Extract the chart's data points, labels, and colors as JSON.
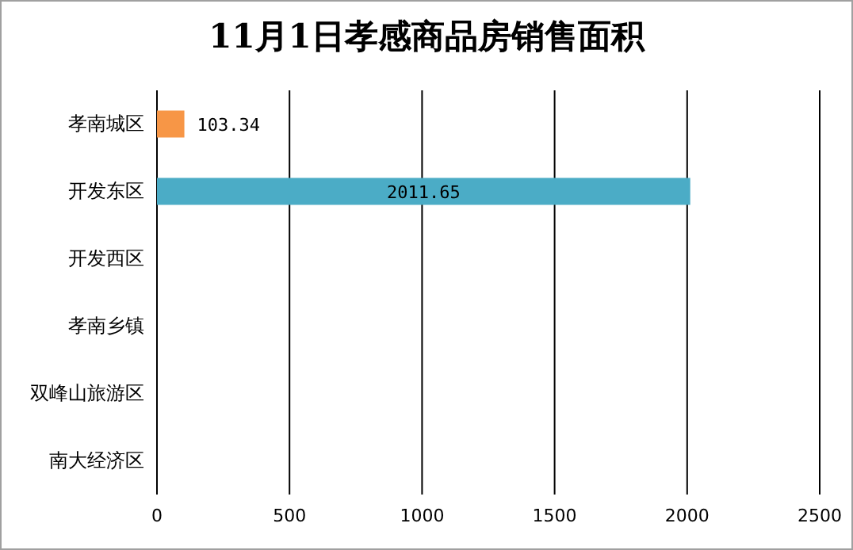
{
  "chart_data": {
    "type": "bar",
    "orientation": "horizontal",
    "title": "11月1日孝感商品房销售面积",
    "categories": [
      "孝南城区",
      "开发东区",
      "开发西区",
      "孝南乡镇",
      "双峰山旅游区",
      "南大经济区"
    ],
    "values": [
      103.34,
      2011.65,
      null,
      null,
      null,
      null
    ],
    "colors": [
      "#f79646",
      "#4bacc6",
      null,
      null,
      null,
      null
    ],
    "xlim": [
      0,
      2500
    ],
    "xticks": [
      0,
      500,
      1000,
      1500,
      2000,
      2500
    ],
    "grid": "x",
    "data_labels": true
  }
}
